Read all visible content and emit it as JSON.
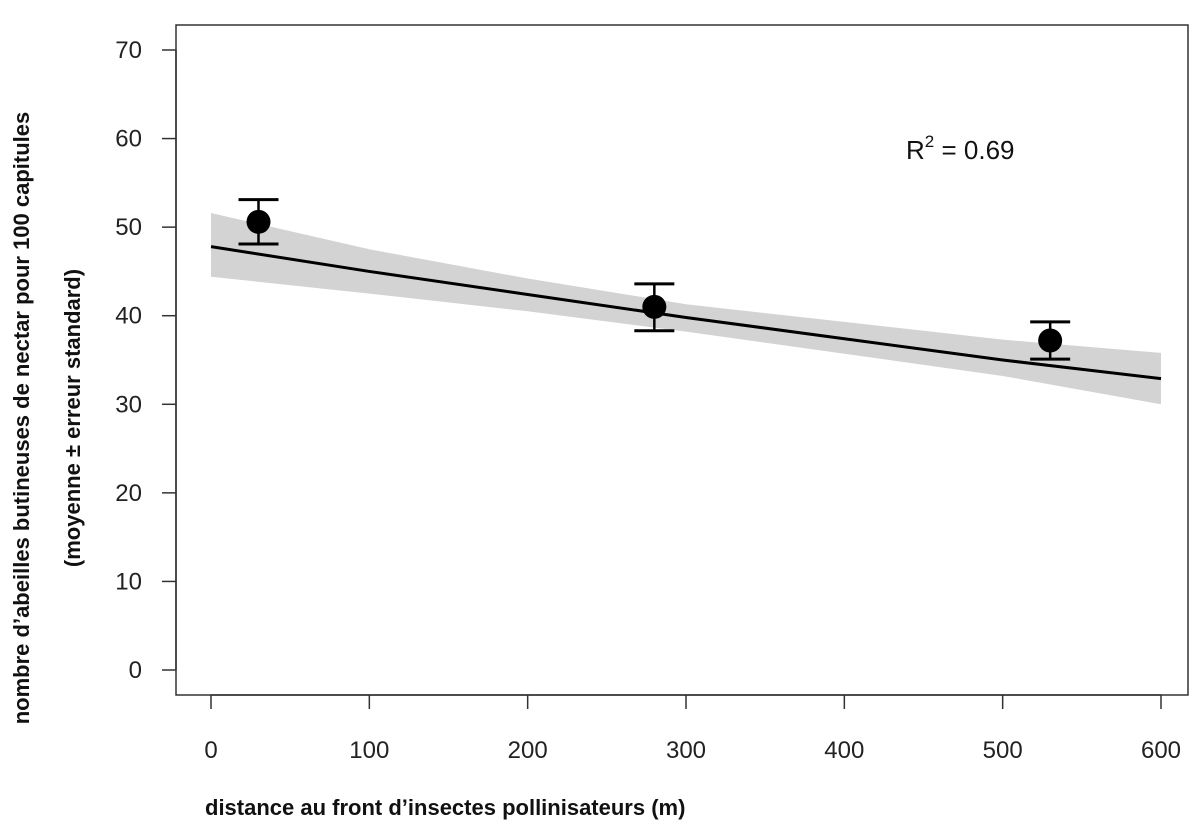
{
  "chart_data": {
    "type": "scatter",
    "xlabel": "distance au front d’insectes pollinisateurs (m)",
    "ylabel_line1": "nombre d’abeilles butineuses de nectar pour 100 capitules",
    "ylabel_line2": "(moyenne ± erreur standard)",
    "xlim": [
      0,
      600
    ],
    "ylim": [
      0,
      70
    ],
    "x_ticks": [
      0,
      100,
      200,
      300,
      400,
      500,
      600
    ],
    "y_ticks": [
      0,
      10,
      20,
      30,
      40,
      50,
      60,
      70
    ],
    "grid": false,
    "series": [
      {
        "points": [
          {
            "x": 30,
            "y": 50.6,
            "err_low": 48.1,
            "err_high": 53.1
          },
          {
            "x": 280,
            "y": 41.0,
            "err_low": 38.3,
            "err_high": 43.6
          },
          {
            "x": 530,
            "y": 37.2,
            "err_low": 35.1,
            "err_high": 39.3
          }
        ]
      }
    ],
    "fit_line": {
      "x": [
        0,
        100,
        200,
        300,
        400,
        500,
        600
      ],
      "y": [
        47.8,
        45.0,
        42.4,
        39.8,
        37.4,
        35.0,
        32.9
      ],
      "ci_lower": [
        44.4,
        42.5,
        40.5,
        38.2,
        35.7,
        33.2,
        30.0
      ],
      "ci_upper": [
        51.6,
        47.5,
        44.2,
        41.3,
        39.3,
        37.3,
        35.8
      ],
      "ci_color": "#d3d3d3",
      "line_color": "#000000"
    },
    "annotation": {
      "base": "R",
      "sup": "2",
      "rest": " = 0.69"
    }
  }
}
